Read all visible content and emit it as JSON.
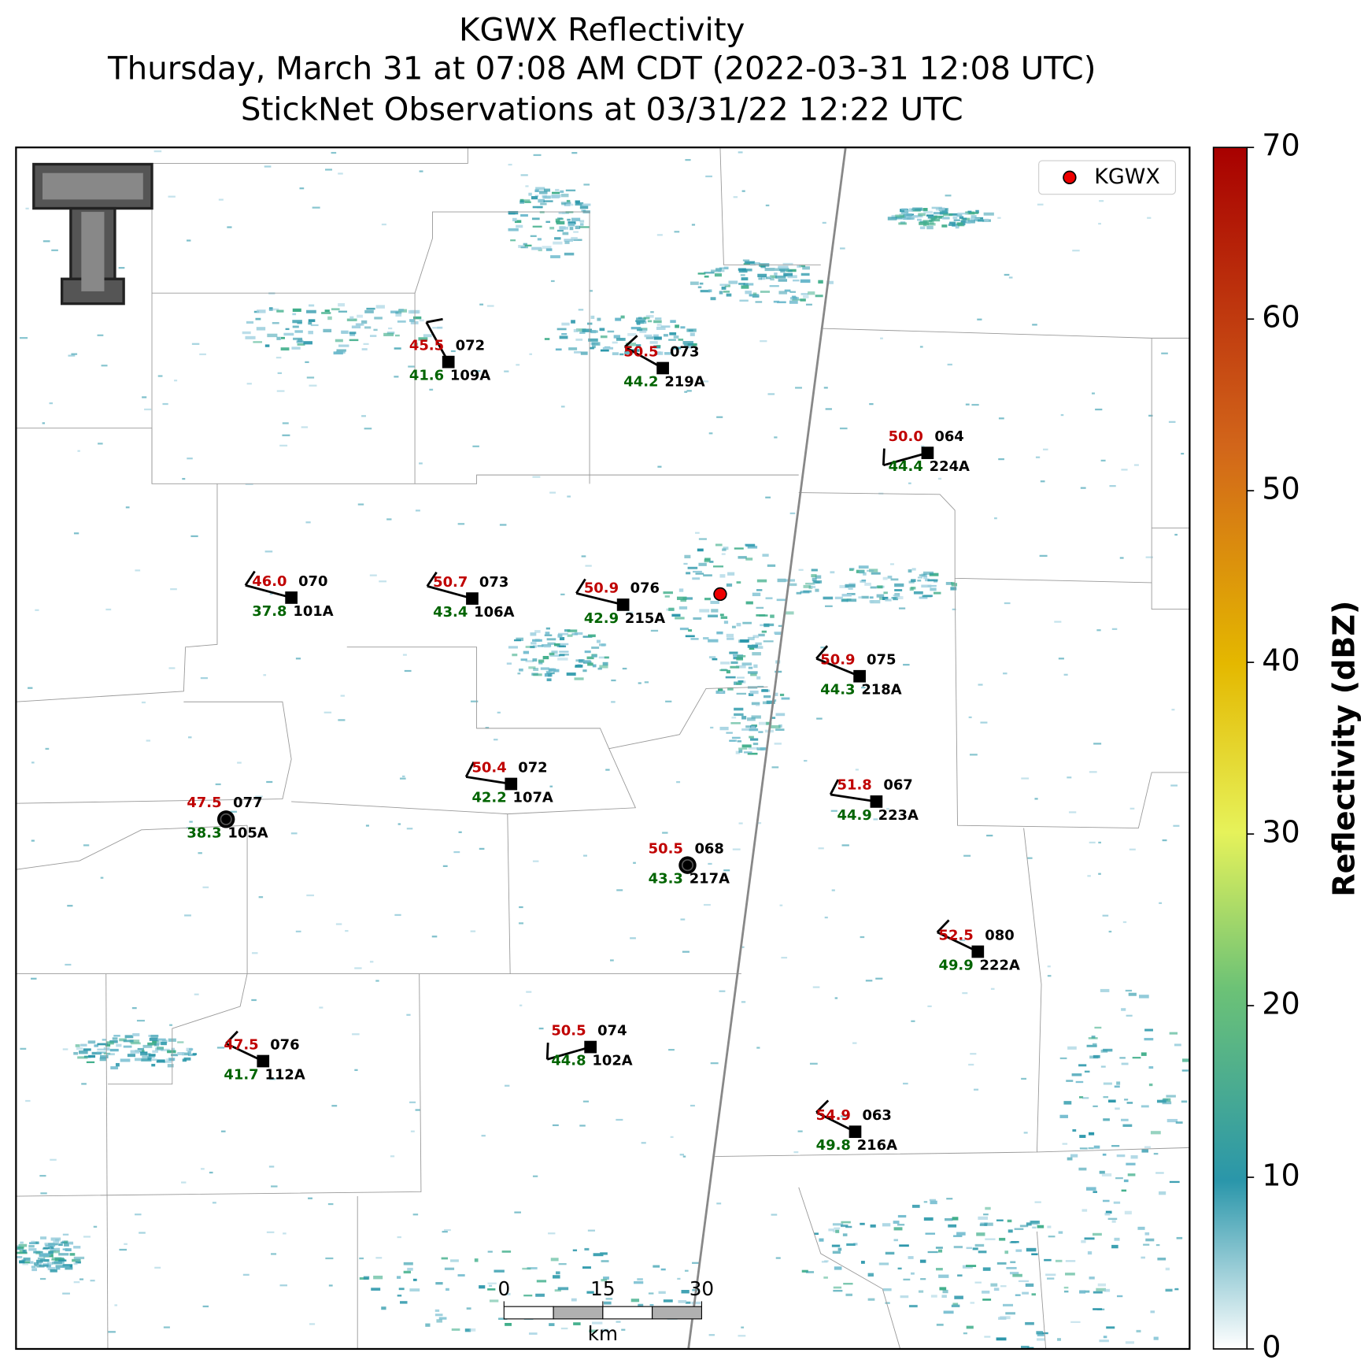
{
  "title": [
    "KGWX Reflectivity",
    "Thursday, March 31 at 07:08 AM CDT (2022-03-31 12:08 UTC)",
    "StickNet Observations at 03/31/22 12:22 UTC"
  ],
  "legend": {
    "label": "KGWX"
  },
  "stations": [
    {
      "id": "109A",
      "temperature": "45.5",
      "dewpoint": "41.6",
      "pressure": "072"
    },
    {
      "id": "219A",
      "temperature": "50.5",
      "dewpoint": "44.2",
      "pressure": "073"
    },
    {
      "id": "224A",
      "temperature": "50.0",
      "dewpoint": "44.4",
      "pressure": "064"
    },
    {
      "id": "101A",
      "temperature": "46.0",
      "dewpoint": "37.8",
      "pressure": "070"
    },
    {
      "id": "106A",
      "temperature": "50.7",
      "dewpoint": "43.4",
      "pressure": "073"
    },
    {
      "id": "215A",
      "temperature": "50.9",
      "dewpoint": "42.9",
      "pressure": "076"
    },
    {
      "id": "218A",
      "temperature": "50.9",
      "dewpoint": "44.3",
      "pressure": "075"
    },
    {
      "id": "107A",
      "temperature": "50.4",
      "dewpoint": "42.2",
      "pressure": "072"
    },
    {
      "id": "223A",
      "temperature": "51.8",
      "dewpoint": "44.9",
      "pressure": "067"
    },
    {
      "id": "105A",
      "temperature": "47.5",
      "dewpoint": "38.3",
      "pressure": "077"
    },
    {
      "id": "217A",
      "temperature": "50.5",
      "dewpoint": "43.3",
      "pressure": "068"
    },
    {
      "id": "222A",
      "temperature": "52.5",
      "dewpoint": "49.9",
      "pressure": "080"
    },
    {
      "id": "112A",
      "temperature": "47.5",
      "dewpoint": "41.7",
      "pressure": "076"
    },
    {
      "id": "102A",
      "temperature": "50.5",
      "dewpoint": "44.8",
      "pressure": "074"
    },
    {
      "id": "216A",
      "temperature": "54.9",
      "dewpoint": "49.8",
      "pressure": "063"
    }
  ],
  "colorbar": {
    "label": "Reflectivity (dBZ)",
    "ylim": [
      0,
      70
    ],
    "yticks": [
      0,
      10,
      20,
      30,
      40,
      50,
      60,
      70
    ]
  },
  "scale_bar": {
    "ticks": [
      0,
      15,
      30
    ],
    "unit": "km"
  }
}
